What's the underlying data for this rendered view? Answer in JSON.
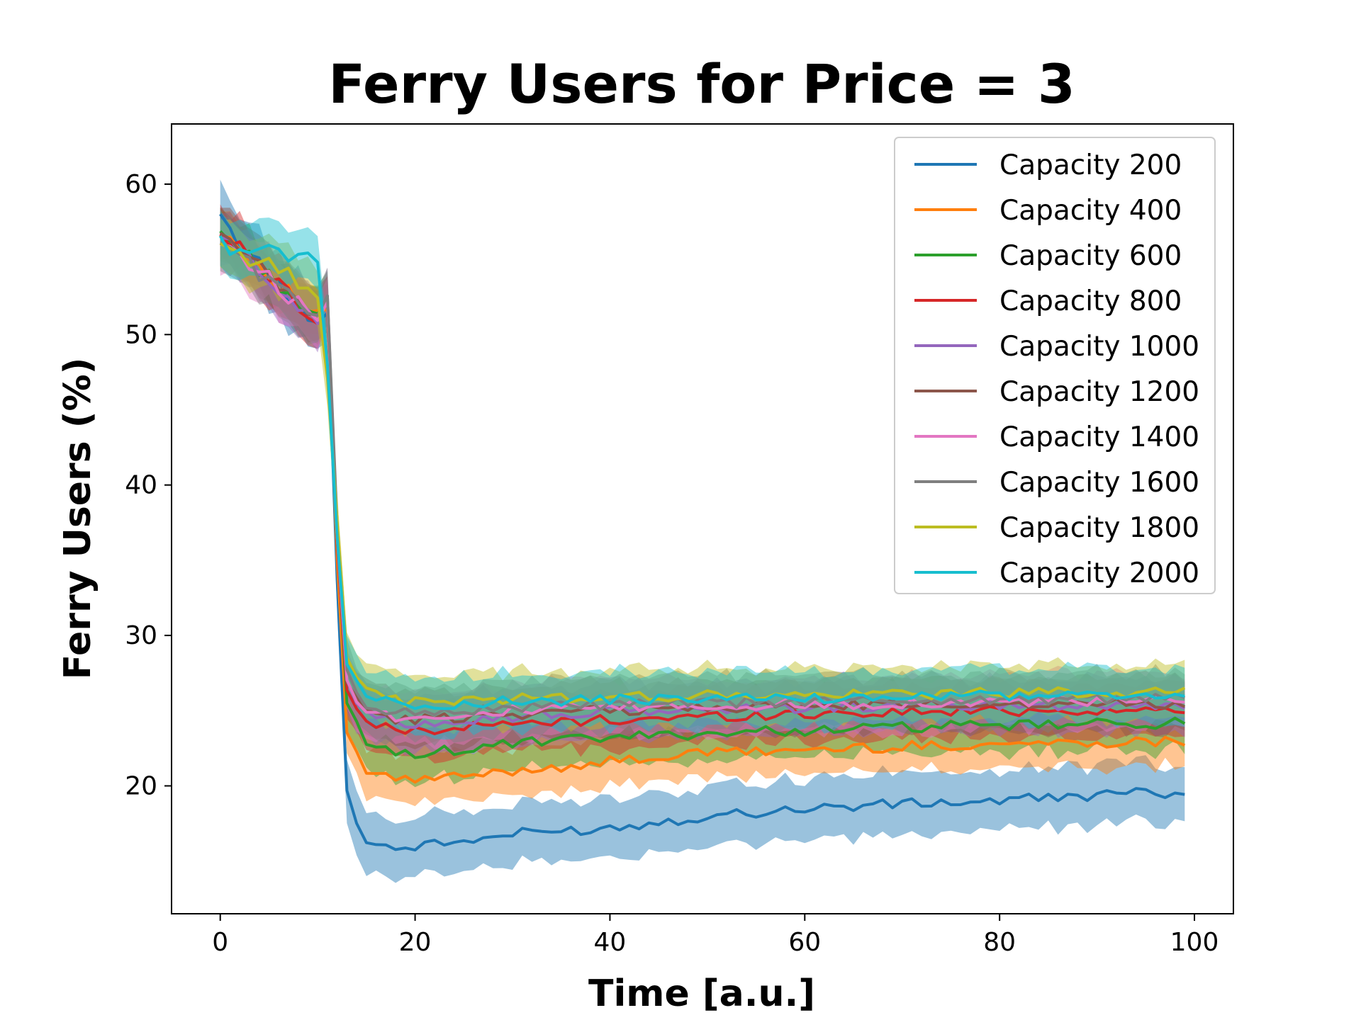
{
  "chart_data": {
    "type": "line",
    "title": "Ferry Users for Price = 3",
    "xlabel": "Time [a.u.]",
    "ylabel": "Ferry Users (%)",
    "xlim": [
      -5,
      104
    ],
    "ylim": [
      11.5,
      64
    ],
    "x_ticks": [
      0,
      20,
      40,
      60,
      80,
      100
    ],
    "y_ticks": [
      20,
      30,
      40,
      50,
      60
    ],
    "grid": false,
    "legend_position": "top-right",
    "bands": "shaded band around each series",
    "x": [
      0,
      10,
      11,
      12,
      13,
      14,
      15,
      16,
      17,
      18,
      19,
      20,
      25,
      30,
      40,
      50,
      60,
      70,
      80,
      90,
      99
    ],
    "series": [
      {
        "name": "Capacity 200",
        "color": "#1f77b4",
        "values": [
          57.5,
          50.5,
          52.0,
          34.0,
          19.5,
          17.5,
          16.5,
          16.2,
          16.0,
          15.8,
          15.9,
          16.0,
          16.3,
          16.8,
          17.2,
          18.0,
          18.5,
          18.8,
          19.0,
          19.4,
          19.6
        ],
        "band": 1.7
      },
      {
        "name": "Capacity 400",
        "color": "#ff7f0e",
        "values": [
          57.0,
          51.0,
          52.0,
          35.0,
          23.0,
          21.8,
          21.0,
          20.8,
          20.6,
          20.5,
          20.4,
          20.4,
          20.6,
          21.0,
          21.6,
          22.2,
          22.4,
          22.6,
          22.8,
          22.9,
          23.0
        ],
        "band": 1.3
      },
      {
        "name": "Capacity 600",
        "color": "#2ca02c",
        "values": [
          56.8,
          51.0,
          52.0,
          36.0,
          25.5,
          24.0,
          23.0,
          22.5,
          22.3,
          22.2,
          22.2,
          22.2,
          22.4,
          22.8,
          23.2,
          23.5,
          23.7,
          23.9,
          24.0,
          24.1,
          24.2
        ],
        "band": 1.5
      },
      {
        "name": "Capacity 800",
        "color": "#d62728",
        "values": [
          56.8,
          51.0,
          52.0,
          36.5,
          26.5,
          25.0,
          24.3,
          24.0,
          23.8,
          23.7,
          23.7,
          23.7,
          23.9,
          24.1,
          24.4,
          24.6,
          24.8,
          24.9,
          25.0,
          25.0,
          25.0
        ],
        "band": 1.5
      },
      {
        "name": "Capacity 1000",
        "color": "#9467bd",
        "values": [
          56.5,
          51.0,
          52.0,
          36.8,
          27.0,
          25.5,
          24.8,
          24.5,
          24.3,
          24.2,
          24.2,
          24.2,
          24.4,
          24.6,
          24.9,
          25.1,
          25.2,
          25.3,
          25.4,
          25.4,
          25.4
        ],
        "band": 1.5
      },
      {
        "name": "Capacity 1200",
        "color": "#8c564b",
        "values": [
          56.6,
          51.0,
          52.0,
          37.0,
          27.2,
          25.8,
          25.0,
          24.7,
          24.5,
          24.4,
          24.4,
          24.4,
          24.6,
          24.8,
          25.0,
          25.2,
          25.3,
          25.4,
          25.5,
          25.5,
          25.5
        ],
        "band": 1.5
      },
      {
        "name": "Capacity 1400",
        "color": "#e377c2",
        "values": [
          56.4,
          51.0,
          52.0,
          37.2,
          27.5,
          26.0,
          25.2,
          24.9,
          24.7,
          24.6,
          24.6,
          24.6,
          24.8,
          25.0,
          25.2,
          25.3,
          25.4,
          25.5,
          25.6,
          25.6,
          25.6
        ],
        "band": 1.5
      },
      {
        "name": "Capacity 1600",
        "color": "#7f7f7f",
        "values": [
          56.3,
          51.0,
          52.0,
          37.5,
          27.8,
          26.3,
          25.5,
          25.2,
          25.0,
          24.9,
          24.9,
          24.9,
          25.0,
          25.2,
          25.4,
          25.5,
          25.6,
          25.7,
          25.7,
          25.8,
          25.8
        ],
        "band": 1.5
      },
      {
        "name": "Capacity 1800",
        "color": "#bcbd22",
        "values": [
          56.0,
          53.0,
          47.0,
          38.0,
          29.0,
          27.5,
          26.5,
          26.0,
          25.8,
          25.7,
          25.6,
          25.6,
          25.7,
          25.8,
          25.9,
          26.0,
          26.0,
          26.1,
          26.2,
          26.2,
          26.2
        ],
        "band": 1.5
      },
      {
        "name": "Capacity 2000",
        "color": "#17becf",
        "values": [
          56.0,
          55.0,
          48.0,
          37.0,
          28.5,
          27.0,
          26.2,
          25.8,
          25.6,
          25.5,
          25.4,
          25.4,
          25.5,
          25.6,
          25.7,
          25.8,
          25.8,
          25.9,
          26.0,
          26.0,
          26.0
        ],
        "band": 1.5
      }
    ]
  }
}
